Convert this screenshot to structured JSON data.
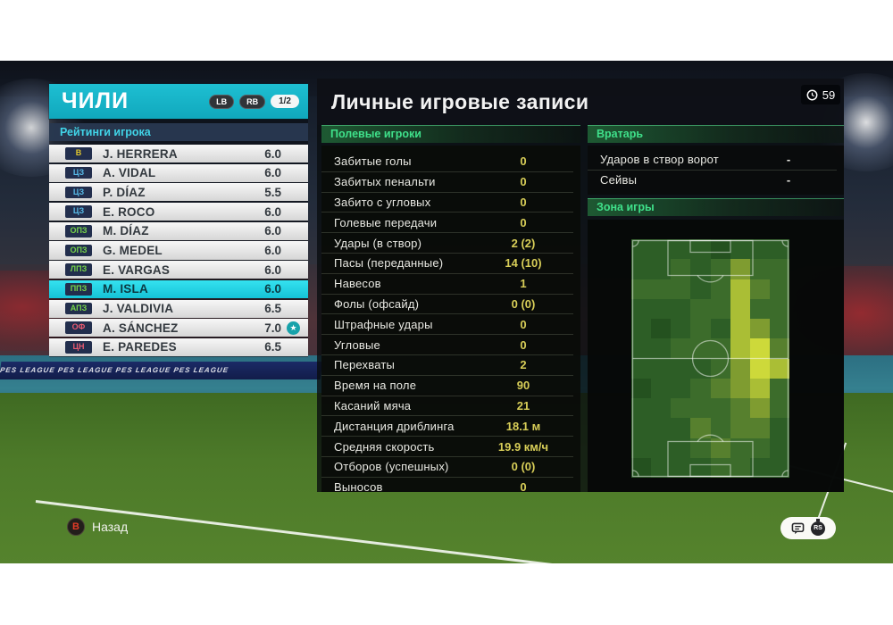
{
  "team_panel": {
    "team_name": "ЧИЛИ",
    "lb_label": "LB",
    "rb_label": "RB",
    "page_indicator": "1/2",
    "ratings_header": "Рейтинги игрока",
    "players": [
      {
        "pos": "В",
        "pos_color": "#e2c62e",
        "name": "J. HERRERA",
        "rating": "6.0",
        "selected": false,
        "star": false
      },
      {
        "pos": "ЦЗ",
        "pos_color": "#57bae8",
        "name": "A. VIDAL",
        "rating": "6.0",
        "selected": false,
        "star": false
      },
      {
        "pos": "ЦЗ",
        "pos_color": "#57bae8",
        "name": "P. DÍAZ",
        "rating": "5.5",
        "selected": false,
        "star": false
      },
      {
        "pos": "ЦЗ",
        "pos_color": "#57bae8",
        "name": "E. ROCO",
        "rating": "6.0",
        "selected": false,
        "star": false
      },
      {
        "pos": "ОПЗ",
        "pos_color": "#76d44a",
        "name": "M. DÍAZ",
        "rating": "6.0",
        "selected": false,
        "star": false
      },
      {
        "pos": "ОПЗ",
        "pos_color": "#76d44a",
        "name": "G. MEDEL",
        "rating": "6.0",
        "selected": false,
        "star": false
      },
      {
        "pos": "ЛПЗ",
        "pos_color": "#76d44a",
        "name": "E. VARGAS",
        "rating": "6.0",
        "selected": false,
        "star": false
      },
      {
        "pos": "ППЗ",
        "pos_color": "#76d44a",
        "name": "M. ISLA",
        "rating": "6.0",
        "selected": true,
        "star": false
      },
      {
        "pos": "АПЗ",
        "pos_color": "#76d44a",
        "name": "J. VALDIVIA",
        "rating": "6.5",
        "selected": false,
        "star": false
      },
      {
        "pos": "ОФ",
        "pos_color": "#e85a70",
        "name": "A. SÁNCHEZ",
        "rating": "7.0",
        "selected": false,
        "star": true
      },
      {
        "pos": "ЦН",
        "pos_color": "#e85a70",
        "name": "E. PAREDES",
        "rating": "6.5",
        "selected": false,
        "star": false
      }
    ]
  },
  "main": {
    "title": "Личные игровые записи",
    "match_minute": "59",
    "field_players_header": "Полевые игроки",
    "field_player_stats": [
      {
        "label": "Забитые голы",
        "value": "0"
      },
      {
        "label": "Забитых пенальти",
        "value": "0"
      },
      {
        "label": "Забито с угловых",
        "value": "0"
      },
      {
        "label": "Голевые передачи",
        "value": "0"
      },
      {
        "label": "Удары (в створ)",
        "value": "2 (2)"
      },
      {
        "label": "Пасы (переданные)",
        "value": "14 (10)"
      },
      {
        "label": "Навесов",
        "value": "1"
      },
      {
        "label": "Фолы (офсайд)",
        "value": "0 (0)"
      },
      {
        "label": "Штрафные удары",
        "value": "0"
      },
      {
        "label": "Угловые",
        "value": "0"
      },
      {
        "label": "Перехваты",
        "value": "2"
      },
      {
        "label": "Время на поле",
        "value": "90"
      },
      {
        "label": "Касаний мяча",
        "value": "21"
      },
      {
        "label": "Дистанция дриблинга",
        "value": "18.1 м"
      },
      {
        "label": "Средняя скорость",
        "value": "19.9 км/ч"
      },
      {
        "label": "Отборов (успешных)",
        "value": "0 (0)"
      },
      {
        "label": "Выносов",
        "value": "0"
      }
    ],
    "goalkeeper_header": "Вратарь",
    "goalkeeper_stats": [
      {
        "label": "Ударов в створ ворот",
        "value": "-"
      },
      {
        "label": "Сейвы",
        "value": "-"
      }
    ],
    "zone_header": "Зона игры"
  },
  "chart_data": {
    "type": "heatmap",
    "title": "Зона игры",
    "rows": 12,
    "cols": 8,
    "palette": [
      "#24511f",
      "#2d5e26",
      "#3c6c2b",
      "#57802e",
      "#7f9c30",
      "#aabe35",
      "#cdd93a"
    ],
    "values": [
      [
        1,
        1,
        1,
        1,
        0,
        1,
        1,
        1
      ],
      [
        1,
        1,
        2,
        1,
        2,
        4,
        2,
        2
      ],
      [
        2,
        2,
        2,
        1,
        2,
        5,
        3,
        2
      ],
      [
        1,
        1,
        1,
        2,
        2,
        5,
        2,
        2
      ],
      [
        1,
        0,
        1,
        2,
        1,
        5,
        4,
        2
      ],
      [
        1,
        1,
        2,
        2,
        2,
        5,
        6,
        3
      ],
      [
        1,
        1,
        1,
        1,
        2,
        4,
        6,
        5
      ],
      [
        0,
        1,
        1,
        2,
        3,
        4,
        5,
        2
      ],
      [
        1,
        1,
        2,
        2,
        2,
        3,
        4,
        2
      ],
      [
        1,
        1,
        1,
        3,
        2,
        3,
        3,
        1
      ],
      [
        1,
        1,
        1,
        2,
        3,
        2,
        2,
        1
      ],
      [
        0,
        1,
        1,
        1,
        2,
        2,
        1,
        1
      ]
    ]
  },
  "footer": {
    "back_button": "B",
    "back_label": "Назад",
    "rs_label": "RS"
  },
  "background": {
    "ad_text": "PES LEAGUE   PES LEAGUE   PES LEAGUE   PES LEAGUE"
  },
  "colors": {
    "accent_cyan": "#16b6ca",
    "selected_row": "#2adcec",
    "section_green": "#3fe08a",
    "stat_value_yellow": "#d8ce58"
  }
}
